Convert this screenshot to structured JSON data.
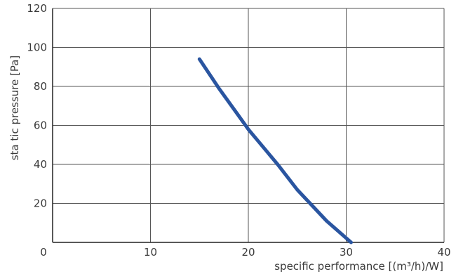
{
  "chart_data": {
    "type": "line",
    "title": "",
    "xlabel": "specific performance [(m³/h)/W]",
    "ylabel": "sta tic pressure [Pa]",
    "xlim": [
      0,
      40
    ],
    "ylim": [
      0,
      120
    ],
    "xticks": [
      0,
      10,
      20,
      30,
      40
    ],
    "yticks": [
      20,
      40,
      60,
      80,
      100,
      120
    ],
    "grid": true,
    "series": [
      {
        "color": "#2a55a0",
        "points": [
          [
            15.0,
            94
          ],
          [
            17.0,
            79
          ],
          [
            19.0,
            65
          ],
          [
            20.0,
            58
          ],
          [
            21.0,
            52
          ],
          [
            23.0,
            40
          ],
          [
            25.0,
            27
          ],
          [
            28.0,
            11
          ],
          [
            30.5,
            0
          ]
        ]
      }
    ]
  }
}
